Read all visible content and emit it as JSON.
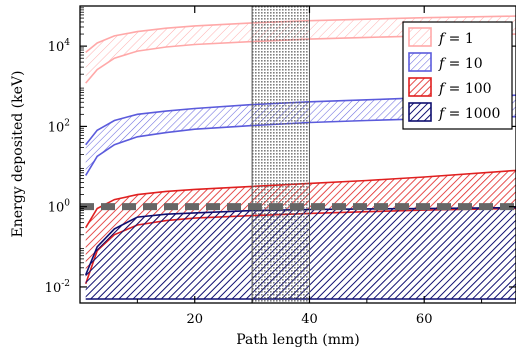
{
  "chart_data": {
    "type": "area",
    "xlabel": "Path length (mm)",
    "ylabel": "Energy deposited (keV)",
    "x_range": [
      0,
      76
    ],
    "y_range_log10": [
      -2.4,
      5.0
    ],
    "y_scale": "log",
    "grid": false,
    "legend_position": "top-right",
    "x_ticks": [
      {
        "value": 20,
        "label": "20"
      },
      {
        "value": 40,
        "label": "40"
      },
      {
        "value": 60,
        "label": "60"
      }
    ],
    "y_ticks": [
      {
        "value": 0.01,
        "base": "10",
        "exp": "-2"
      },
      {
        "value": 1,
        "base": "10",
        "exp": "0"
      },
      {
        "value": 100,
        "base": "10",
        "exp": "2"
      },
      {
        "value": 10000,
        "base": "10",
        "exp": "4"
      }
    ],
    "shaded_band": {
      "x_from": 30,
      "x_to": 40,
      "color": "#555555"
    },
    "threshold_line": {
      "y": 1,
      "color": "#666666"
    },
    "series": [
      {
        "name": "1",
        "color": "#ffa8a8",
        "x": [
          1,
          3,
          6,
          10,
          15,
          20,
          30,
          40,
          50,
          60,
          76
        ],
        "lower": [
          1200,
          2600,
          5000,
          7500,
          9500,
          11000,
          13000,
          15000,
          16500,
          18000,
          20000
        ],
        "upper": [
          7000,
          12000,
          18000,
          23000,
          28000,
          32000,
          38000,
          43000,
          47000,
          51000,
          56000
        ]
      },
      {
        "name": "10",
        "color": "#5b5bdc",
        "x": [
          1,
          3,
          6,
          10,
          15,
          20,
          30,
          40,
          50,
          60,
          76
        ],
        "lower": [
          6,
          18,
          35,
          55,
          70,
          85,
          105,
          125,
          140,
          155,
          175
        ],
        "upper": [
          35,
          80,
          140,
          200,
          240,
          280,
          350,
          410,
          460,
          520,
          600
        ]
      },
      {
        "name": "100",
        "color": "#e02020",
        "x": [
          1,
          3,
          6,
          10,
          15,
          20,
          30,
          40,
          50,
          60,
          76
        ],
        "lower": [
          0.012,
          0.08,
          0.2,
          0.35,
          0.45,
          0.52,
          0.6,
          0.68,
          0.75,
          0.82,
          0.9
        ],
        "upper": [
          0.3,
          0.9,
          1.5,
          2.0,
          2.4,
          2.7,
          3.2,
          3.8,
          4.5,
          5.5,
          8.0
        ]
      },
      {
        "name": "1000",
        "color": "#0f0f70",
        "x": [
          1,
          3,
          6,
          10,
          15,
          20,
          30,
          40,
          50,
          60,
          76
        ],
        "lower": [
          0.005,
          0.005,
          0.005,
          0.005,
          0.005,
          0.005,
          0.005,
          0.005,
          0.005,
          0.005,
          0.005
        ],
        "upper": [
          0.02,
          0.1,
          0.28,
          0.55,
          0.65,
          0.7,
          0.8,
          0.85,
          0.88,
          0.9,
          0.95
        ]
      }
    ],
    "legend_symbol": "f",
    "legend_equals": "="
  }
}
